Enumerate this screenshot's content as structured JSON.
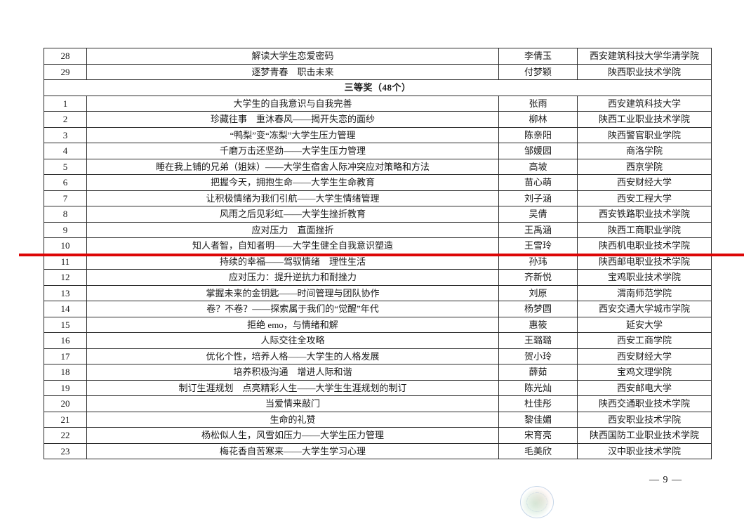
{
  "page": {
    "number_label": "— 9 —"
  },
  "colors": {
    "highlight_line": "#dd0505",
    "border": "#2b2b2b",
    "text": "#1a1a1a"
  },
  "table": {
    "rows": [
      {
        "num": "28",
        "title": "解读大学生恋爱密码",
        "author": "李倩玉",
        "institution": "西安建筑科技大学华清学院"
      },
      {
        "num": "29",
        "title": "逐梦青春　职击未来",
        "author": "付梦颖",
        "institution": "陕西职业技术学院"
      },
      {
        "section": "三等奖（48个）"
      },
      {
        "num": "1",
        "title": "大学生的自我意识与自我完善",
        "author": "张雨",
        "institution": "西安建筑科技大学"
      },
      {
        "num": "2",
        "title": "珍藏往事　重沐春风——揭开失恋的面纱",
        "author": "柳林",
        "institution": "陕西工业职业技术学院"
      },
      {
        "num": "3",
        "title": "“鸭梨”变“冻梨”大学生压力管理",
        "author": "陈亲阳",
        "institution": "陕西警官职业学院"
      },
      {
        "num": "4",
        "title": "千磨万击还坚劲——大学生压力管理",
        "author": "邹媛园",
        "institution": "商洛学院"
      },
      {
        "num": "5",
        "title": "睡在我上铺的兄弟（姐妹）——大学生宿舍人际冲突应对策略和方法",
        "author": "高坡",
        "institution": "西京学院"
      },
      {
        "num": "6",
        "title": "把握今天，拥抱生命——大学生生命教育",
        "author": "苗心萌",
        "institution": "西安财经大学"
      },
      {
        "num": "7",
        "title": "让积极情绪为我们引航——大学生情绪管理",
        "author": "刘子涵",
        "institution": "西安工程大学"
      },
      {
        "num": "8",
        "title": "风雨之后见彩虹——大学生挫折教育",
        "author": "吴倩",
        "institution": "西安铁路职业技术学院"
      },
      {
        "num": "9",
        "title": "应对压力　直面挫折",
        "author": "王禹涵",
        "institution": "陕西工商职业学院"
      },
      {
        "num": "10",
        "title": "知人者智，自知者明——大学生健全自我意识塑造",
        "author": "王雪玲",
        "institution": "陕西机电职业技术学院",
        "highlight": true
      },
      {
        "num": "11",
        "title": "持续的幸福——驾驭情绪　理性生活",
        "author": "孙玮",
        "institution": "陕西邮电职业技术学院"
      },
      {
        "num": "12",
        "title": "应对压力：提升逆抗力和耐挫力",
        "author": "齐新悦",
        "institution": "宝鸡职业技术学院"
      },
      {
        "num": "13",
        "title": "掌握未来的金钥匙——时间管理与团队协作",
        "author": "刘原",
        "institution": "渭南师范学院"
      },
      {
        "num": "14",
        "title": "卷？不卷？——探索属于我们的“觉醒”年代",
        "author": "杨梦圆",
        "institution": "西安交通大学城市学院"
      },
      {
        "num": "15",
        "title": "拒绝 emo，与情绪和解",
        "author": "惠筱",
        "institution": "延安大学"
      },
      {
        "num": "16",
        "title": "人际交往全攻略",
        "author": "王璐璐",
        "institution": "西安工商学院"
      },
      {
        "num": "17",
        "title": "优化个性，培养人格——大学生的人格发展",
        "author": "贺小玲",
        "institution": "西安财经大学"
      },
      {
        "num": "18",
        "title": "培养积极沟通　增进人际和谐",
        "author": "薛茹",
        "institution": "宝鸡文理学院"
      },
      {
        "num": "19",
        "title": "制订生涯规划　点亮精彩人生——大学生生涯规划的制订",
        "author": "陈光灿",
        "institution": "西安邮电大学"
      },
      {
        "num": "20",
        "title": "当爱情来敲门",
        "author": "杜佳彤",
        "institution": "陕西交通职业技术学院"
      },
      {
        "num": "21",
        "title": "生命的礼赞",
        "author": "黎佳媚",
        "institution": "西安职业技术学院"
      },
      {
        "num": "22",
        "title": "杨松似人生，风雪如压力——大学生压力管理",
        "author": "宋育亮",
        "institution": "陕西国防工业职业技术学院"
      },
      {
        "num": "23",
        "title": "梅花香自苦寒来——大学生学习心理",
        "author": "毛美欣",
        "institution": "汉中职业技术学院"
      }
    ]
  },
  "watermark": {
    "icon": "seal-watermark"
  }
}
